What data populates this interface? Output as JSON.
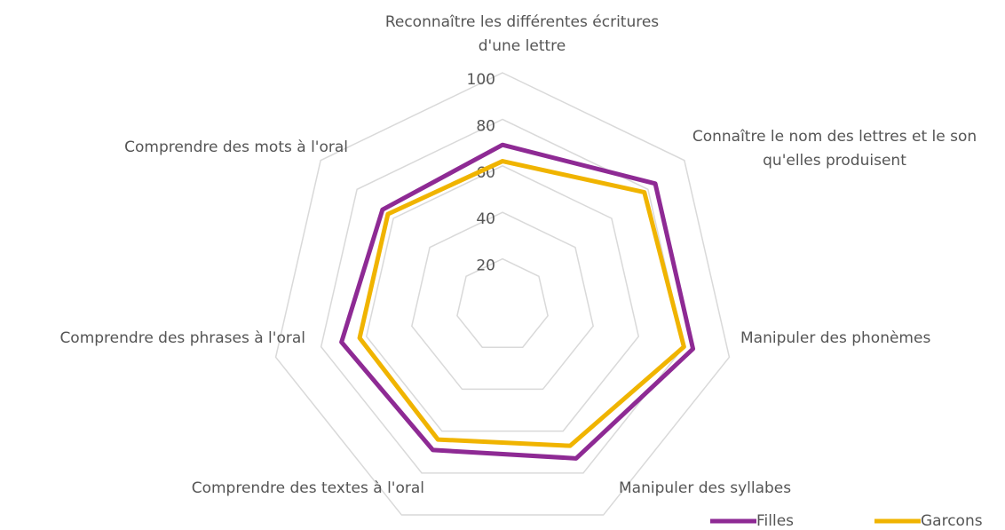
{
  "chart_data": {
    "type": "radar",
    "categories": [
      "Reconnaître les différentes écritures d'une lettre",
      "Connaître le nom des lettres et le son qu'elles produisent",
      "Manipuler des phonèmes",
      "Manipuler des syllabes",
      "Comprendre des textes à l'oral",
      "Comprendre des phrases à l'oral",
      "Comprendre des mots à l'oral"
    ],
    "series": [
      {
        "name": "Filles",
        "color": "#8e2a94",
        "values": [
          69,
          84,
          84,
          73,
          69,
          71,
          66
        ]
      },
      {
        "name": "Garcons",
        "color": "#f0b400",
        "values": [
          62,
          78,
          80,
          67,
          64,
          63,
          63
        ]
      }
    ],
    "ylim": [
      0,
      100
    ],
    "yticks": [
      20,
      40,
      60,
      80,
      100
    ],
    "grid": true,
    "legend": "bottom-right"
  }
}
